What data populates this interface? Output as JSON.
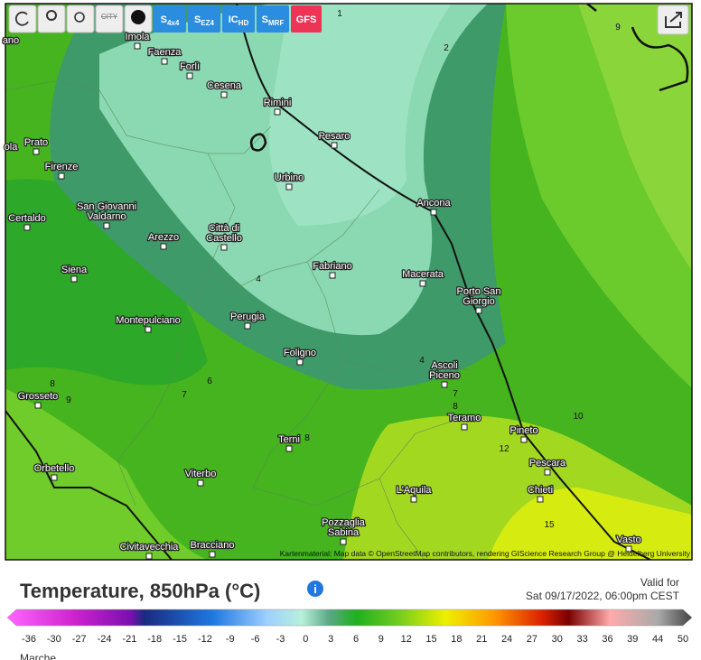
{
  "toolbar": {
    "city": "CITY",
    "models": [
      {
        "main": "S",
        "sub": "4x4"
      },
      {
        "main": "S",
        "sub": "EZ4"
      },
      {
        "main": "IC",
        "sub": "HD"
      },
      {
        "main": "S",
        "sub": "MRF"
      },
      {
        "main": "GFS"
      }
    ]
  },
  "map": {
    "cities": [
      {
        "label": [
          "Imola"
        ]
      },
      {
        "label": [
          "Faenza"
        ]
      },
      {
        "label": [
          "Forlì"
        ]
      },
      {
        "label": [
          "Cesena"
        ]
      },
      {
        "label": [
          "Rimini"
        ]
      },
      {
        "label": [
          "Pesaro"
        ]
      },
      {
        "label": [
          "Prato"
        ]
      },
      {
        "label": [
          "Firenze"
        ]
      },
      {
        "label": [
          "Urbino"
        ]
      },
      {
        "label": [
          "Ancona"
        ]
      },
      {
        "label": [
          "Certaldo"
        ]
      },
      {
        "label": [
          "San Giovanni",
          "Valdarno"
        ]
      },
      {
        "label": [
          "Arezzo"
        ]
      },
      {
        "label": [
          "Città di",
          "Castello"
        ]
      },
      {
        "label": [
          "Siena"
        ]
      },
      {
        "label": [
          "Fabriano"
        ]
      },
      {
        "label": [
          "Macerata"
        ]
      },
      {
        "label": [
          "Porto San",
          "Giorgio"
        ]
      },
      {
        "label": [
          "Montepulciano"
        ]
      },
      {
        "label": [
          "Perugia"
        ]
      },
      {
        "label": [
          "Foligno"
        ]
      },
      {
        "label": [
          "Ascoli",
          "Piceno"
        ]
      },
      {
        "label": [
          "Grosseto"
        ]
      },
      {
        "label": [
          "Teramo"
        ]
      },
      {
        "label": [
          "Pineto"
        ]
      },
      {
        "label": [
          "Terni"
        ]
      },
      {
        "label": [
          "Pescara"
        ]
      },
      {
        "label": [
          "Orbetello"
        ]
      },
      {
        "label": [
          "Viterbo"
        ]
      },
      {
        "label": [
          "L'Aquila"
        ]
      },
      {
        "label": [
          "Chieti"
        ]
      },
      {
        "label": [
          "Pozzaglia",
          "Sabina"
        ]
      },
      {
        "label": [
          "Civitavecchia"
        ]
      },
      {
        "label": [
          "Bracciano"
        ]
      },
      {
        "label": [
          "Vasto"
        ]
      },
      {
        "label": [
          "ano"
        ]
      },
      {
        "label": [
          "ola"
        ]
      }
    ],
    "contour_labels": [
      "1",
      "2",
      "9",
      "4",
      "4",
      "6",
      "7",
      "7",
      "8",
      "8",
      "8",
      "9",
      "10",
      "12",
      "15"
    ],
    "attribution": "Kartenmaterial: Map data © OpenStreetMap contributors, rendering GIScience Research Group @ Heidelberg University"
  },
  "legend": {
    "title": "Temperature, 850hPa (°C)",
    "valid_label": "Valid for",
    "valid_time": "Sat 09/17/2022, 06:00pm CEST",
    "scale": [
      -36,
      -30,
      -27,
      -24,
      -21,
      -18,
      -15,
      -12,
      -9,
      -6,
      -3,
      0,
      3,
      6,
      9,
      12,
      15,
      18,
      21,
      24,
      27,
      30,
      33,
      36,
      39,
      44,
      50
    ],
    "region": "Marche"
  }
}
